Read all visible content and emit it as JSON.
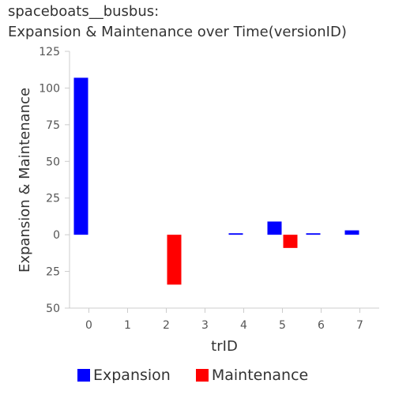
{
  "title_line1": "spaceboats__busbus:",
  "title_line2": "Expansion & Maintenance over Time(versionID)",
  "chart_data": {
    "type": "bar",
    "categories": [
      "0",
      "1",
      "2",
      "3",
      "4",
      "5",
      "6",
      "7"
    ],
    "series": [
      {
        "name": "Expansion",
        "color": "#0000ff",
        "values": [
          107,
          0,
          0,
          0,
          1,
          9,
          1,
          3
        ]
      },
      {
        "name": "Maintenance",
        "color": "#ff0000",
        "values": [
          0,
          0,
          -34,
          0,
          0,
          -9,
          0,
          0
        ]
      }
    ],
    "xlabel": "trID",
    "ylabel": "Expansion & Maintenance",
    "ylim": [
      -50,
      125
    ],
    "yticks": [
      125,
      100,
      75,
      50,
      25,
      0,
      -25,
      -50
    ],
    "ytick_labels": [
      "125",
      "100",
      "75",
      "50",
      "25",
      "0",
      "25",
      "50"
    ],
    "grid": false,
    "legend": "bottom"
  }
}
